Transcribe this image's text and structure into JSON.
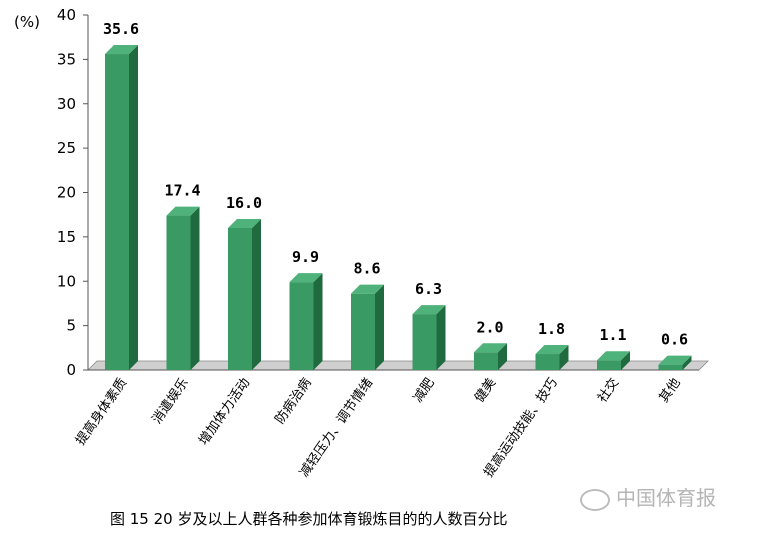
{
  "chart_data": {
    "type": "bar",
    "unit_label": "(%)",
    "categories": [
      "提高身体素质",
      "消遣娱乐",
      "增加体力活动",
      "防病治病",
      "减轻压力、调节情绪",
      "减肥",
      "健美",
      "提高运动技能、技巧",
      "社交",
      "其他"
    ],
    "values": [
      35.6,
      17.4,
      16.0,
      9.9,
      8.6,
      6.3,
      2.0,
      1.8,
      1.1,
      0.6
    ],
    "value_labels": [
      "35.6",
      "17.4",
      "16.0",
      "9.9",
      "8.6",
      "6.3",
      "2.0",
      "1.8",
      "1.1",
      "0.6"
    ],
    "ylim": [
      0,
      40
    ],
    "yticks": [
      0,
      5,
      10,
      15,
      20,
      25,
      30,
      35,
      40
    ],
    "grid": false,
    "bar_color": "#3a9a64",
    "bar_side_color": "#1f6b3f"
  },
  "caption": "图 15   20 岁及以上人群各种参加体育锻炼目的的人数百分比",
  "watermark": "中国体育报"
}
